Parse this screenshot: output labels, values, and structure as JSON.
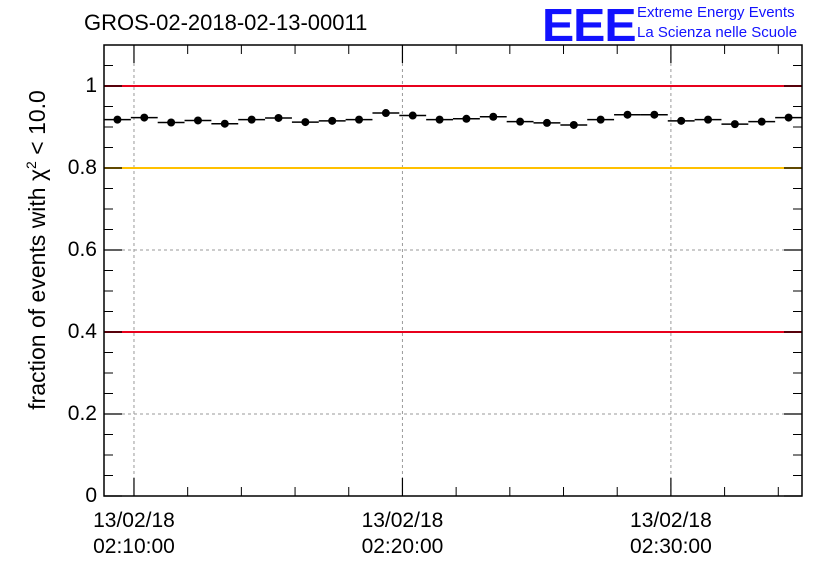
{
  "chart_data": {
    "type": "scatter",
    "title": "GROS-02-2018-02-13-00011",
    "ylabel_main": "fraction of events with χ",
    "ylabel_sup": "2",
    "ylabel_tail": " < 10.0",
    "xlabel": "",
    "ylim": [
      0,
      1.1
    ],
    "y_ticks": [
      "0",
      "0.2",
      "0.4",
      "0.6",
      "0.8",
      "1"
    ],
    "y_tick_values": [
      0,
      0.2,
      0.4,
      0.6,
      0.8,
      1.0
    ],
    "x_range": [
      "2018-02-13 02:08:53",
      "2018-02-13 02:34:53"
    ],
    "x_ticks": [
      {
        "date": "13/02/18",
        "time": "02:10:00"
      },
      {
        "date": "13/02/18",
        "time": "02:20:00"
      },
      {
        "date": "13/02/18",
        "time": "02:30:00"
      }
    ],
    "grid": true,
    "reference_lines": [
      {
        "y": 1.0,
        "color": "#e8001c"
      },
      {
        "y": 0.8,
        "color": "#ffc000"
      },
      {
        "y": 0.4,
        "color": "#e8001c"
      }
    ],
    "x": [
      "02:09:23",
      "02:10:23",
      "02:11:23",
      "02:12:23",
      "02:13:23",
      "02:14:23",
      "02:15:23",
      "02:16:23",
      "02:17:23",
      "02:18:23",
      "02:19:23",
      "02:20:23",
      "02:21:23",
      "02:22:23",
      "02:23:23",
      "02:24:23",
      "02:25:23",
      "02:26:23",
      "02:27:23",
      "02:28:23",
      "02:29:23",
      "02:30:23",
      "02:31:23",
      "02:32:23",
      "02:33:23",
      "02:34:23"
    ],
    "values": [
      0.918,
      0.923,
      0.911,
      0.916,
      0.908,
      0.918,
      0.922,
      0.912,
      0.915,
      0.918,
      0.934,
      0.928,
      0.918,
      0.92,
      0.925,
      0.913,
      0.91,
      0.905,
      0.918,
      0.93,
      0.93,
      0.915,
      0.918,
      0.907,
      0.913,
      0.923
    ],
    "marker_color": "#000000"
  },
  "logo": {
    "text": "EEE",
    "line1": "Extreme Energy Events",
    "line2": "La Scienza nelle Scuole",
    "color": "#1212ff"
  }
}
